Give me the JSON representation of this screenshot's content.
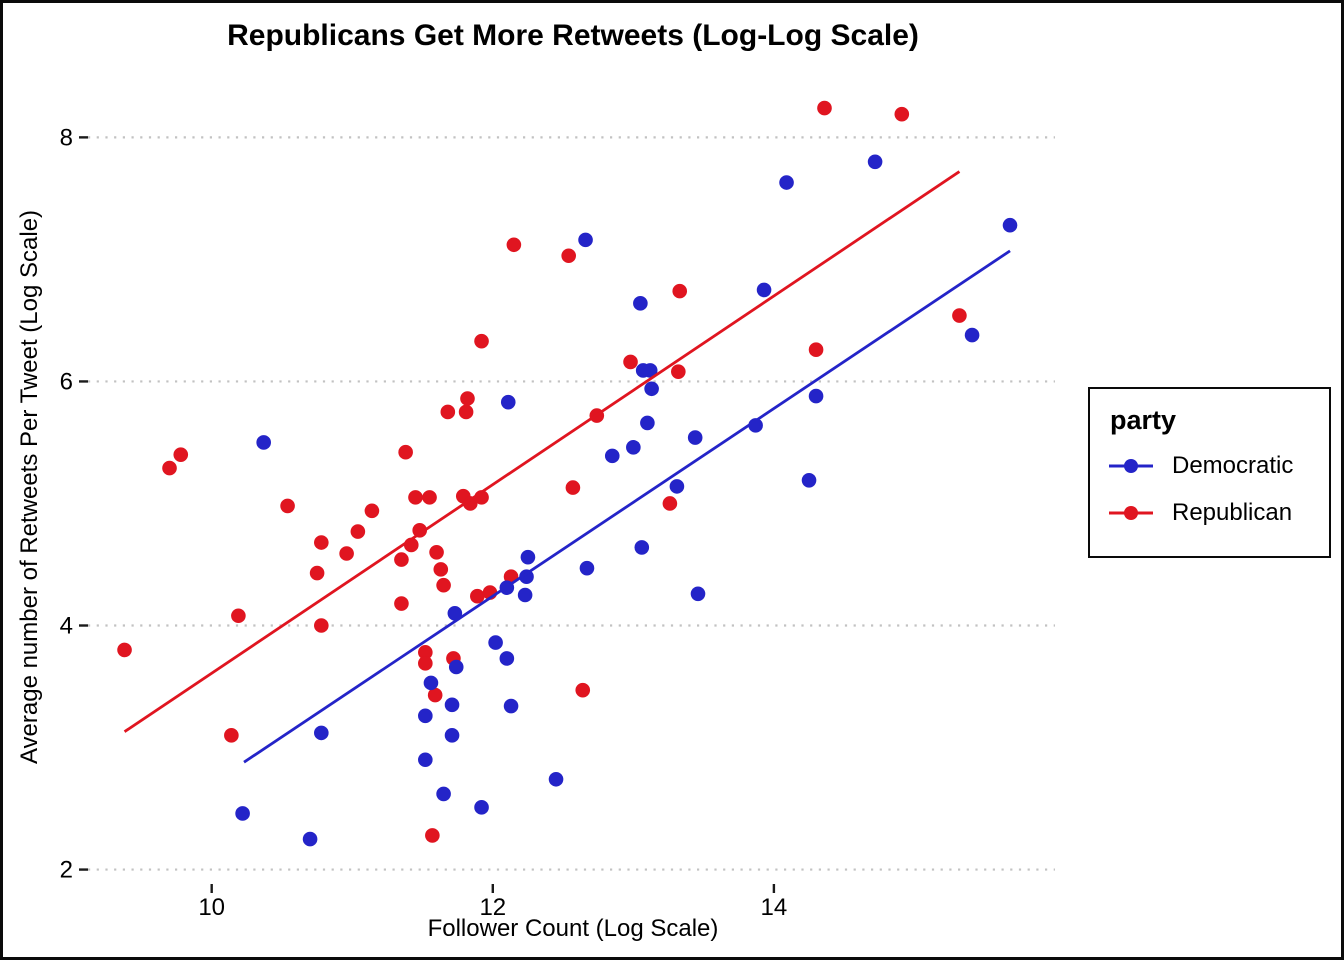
{
  "title": "Republicans Get More Retweets (Log-Log Scale)",
  "legend": {
    "title": "party",
    "entries": [
      {
        "label": "Democratic",
        "color": "#2424c8"
      },
      {
        "label": "Republican",
        "color": "#e01520"
      }
    ]
  },
  "chart_data": {
    "type": "scatter",
    "title": "Republicans Get More Retweets (Log-Log Scale)",
    "xlabel": "Follower Count (Log Scale)",
    "ylabel": "Average number of Retweets Per Tweet (Log Scale)",
    "xlim": [
      9.12,
      16.0
    ],
    "ylim": [
      1.89,
      8.38
    ],
    "x_ticks": [
      10,
      12,
      14
    ],
    "y_ticks": [
      2,
      4,
      6,
      8
    ],
    "grid": "horizontal-dotted",
    "gridline_color": "#c2c2c2",
    "tick_color": "#1a1a1a",
    "legend_position": "right",
    "legend_title": "party",
    "series": [
      {
        "name": "Republican",
        "color": "#e01520",
        "trend": {
          "x1": 9.38,
          "y1": 3.13,
          "x2": 15.32,
          "y2": 7.72
        },
        "points": [
          [
            9.38,
            3.8
          ],
          [
            9.7,
            5.29
          ],
          [
            9.78,
            5.4
          ],
          [
            10.14,
            3.1
          ],
          [
            10.19,
            4.08
          ],
          [
            10.54,
            4.98
          ],
          [
            10.75,
            4.43
          ],
          [
            10.78,
            4.68
          ],
          [
            10.78,
            4.0
          ],
          [
            10.96,
            4.59
          ],
          [
            11.04,
            4.77
          ],
          [
            11.14,
            4.94
          ],
          [
            11.35,
            4.54
          ],
          [
            11.35,
            4.18
          ],
          [
            11.38,
            5.42
          ],
          [
            11.42,
            4.66
          ],
          [
            11.45,
            5.05
          ],
          [
            11.48,
            4.78
          ],
          [
            11.52,
            3.78
          ],
          [
            11.52,
            3.69
          ],
          [
            11.55,
            5.05
          ],
          [
            11.57,
            2.28
          ],
          [
            11.59,
            3.43
          ],
          [
            11.6,
            4.6
          ],
          [
            11.63,
            4.46
          ],
          [
            11.65,
            4.33
          ],
          [
            11.68,
            5.75
          ],
          [
            11.72,
            3.73
          ],
          [
            11.79,
            5.06
          ],
          [
            11.81,
            5.75
          ],
          [
            11.82,
            5.86
          ],
          [
            11.84,
            5.0
          ],
          [
            11.89,
            4.24
          ],
          [
            11.92,
            6.33
          ],
          [
            11.92,
            5.05
          ],
          [
            11.98,
            4.27
          ],
          [
            12.13,
            4.4
          ],
          [
            12.15,
            7.12
          ],
          [
            12.54,
            7.03
          ],
          [
            12.57,
            5.13
          ],
          [
            12.64,
            3.47
          ],
          [
            12.74,
            5.72
          ],
          [
            12.98,
            6.16
          ],
          [
            13.26,
            5.0
          ],
          [
            13.32,
            6.08
          ],
          [
            13.33,
            6.74
          ],
          [
            14.3,
            6.26
          ],
          [
            14.36,
            8.24
          ],
          [
            14.91,
            8.19
          ],
          [
            15.32,
            6.54
          ]
        ]
      },
      {
        "name": "Democratic",
        "color": "#2424c8",
        "trend": {
          "x1": 10.23,
          "y1": 2.88,
          "x2": 15.68,
          "y2": 7.07
        },
        "points": [
          [
            10.22,
            2.46
          ],
          [
            10.37,
            5.5
          ],
          [
            10.7,
            2.25
          ],
          [
            10.78,
            3.12
          ],
          [
            11.52,
            3.26
          ],
          [
            11.52,
            2.9
          ],
          [
            11.56,
            3.53
          ],
          [
            11.65,
            2.62
          ],
          [
            11.71,
            3.35
          ],
          [
            11.71,
            3.1
          ],
          [
            11.73,
            4.1
          ],
          [
            11.74,
            3.66
          ],
          [
            11.92,
            2.51
          ],
          [
            12.02,
            3.86
          ],
          [
            12.1,
            4.31
          ],
          [
            12.1,
            3.73
          ],
          [
            12.11,
            5.83
          ],
          [
            12.13,
            3.34
          ],
          [
            12.23,
            4.25
          ],
          [
            12.24,
            4.4
          ],
          [
            12.25,
            4.56
          ],
          [
            12.45,
            2.74
          ],
          [
            12.66,
            7.16
          ],
          [
            12.67,
            4.47
          ],
          [
            12.85,
            5.39
          ],
          [
            13.0,
            5.46
          ],
          [
            13.05,
            6.64
          ],
          [
            13.06,
            4.64
          ],
          [
            13.07,
            6.09
          ],
          [
            13.1,
            5.66
          ],
          [
            13.12,
            6.09
          ],
          [
            13.13,
            5.94
          ],
          [
            13.31,
            5.14
          ],
          [
            13.44,
            5.54
          ],
          [
            13.46,
            4.26
          ],
          [
            13.87,
            5.64
          ],
          [
            13.93,
            6.75
          ],
          [
            14.09,
            7.63
          ],
          [
            14.25,
            5.19
          ],
          [
            14.3,
            5.88
          ],
          [
            14.72,
            7.8
          ],
          [
            15.41,
            6.38
          ],
          [
            15.68,
            7.28
          ]
        ]
      }
    ]
  }
}
